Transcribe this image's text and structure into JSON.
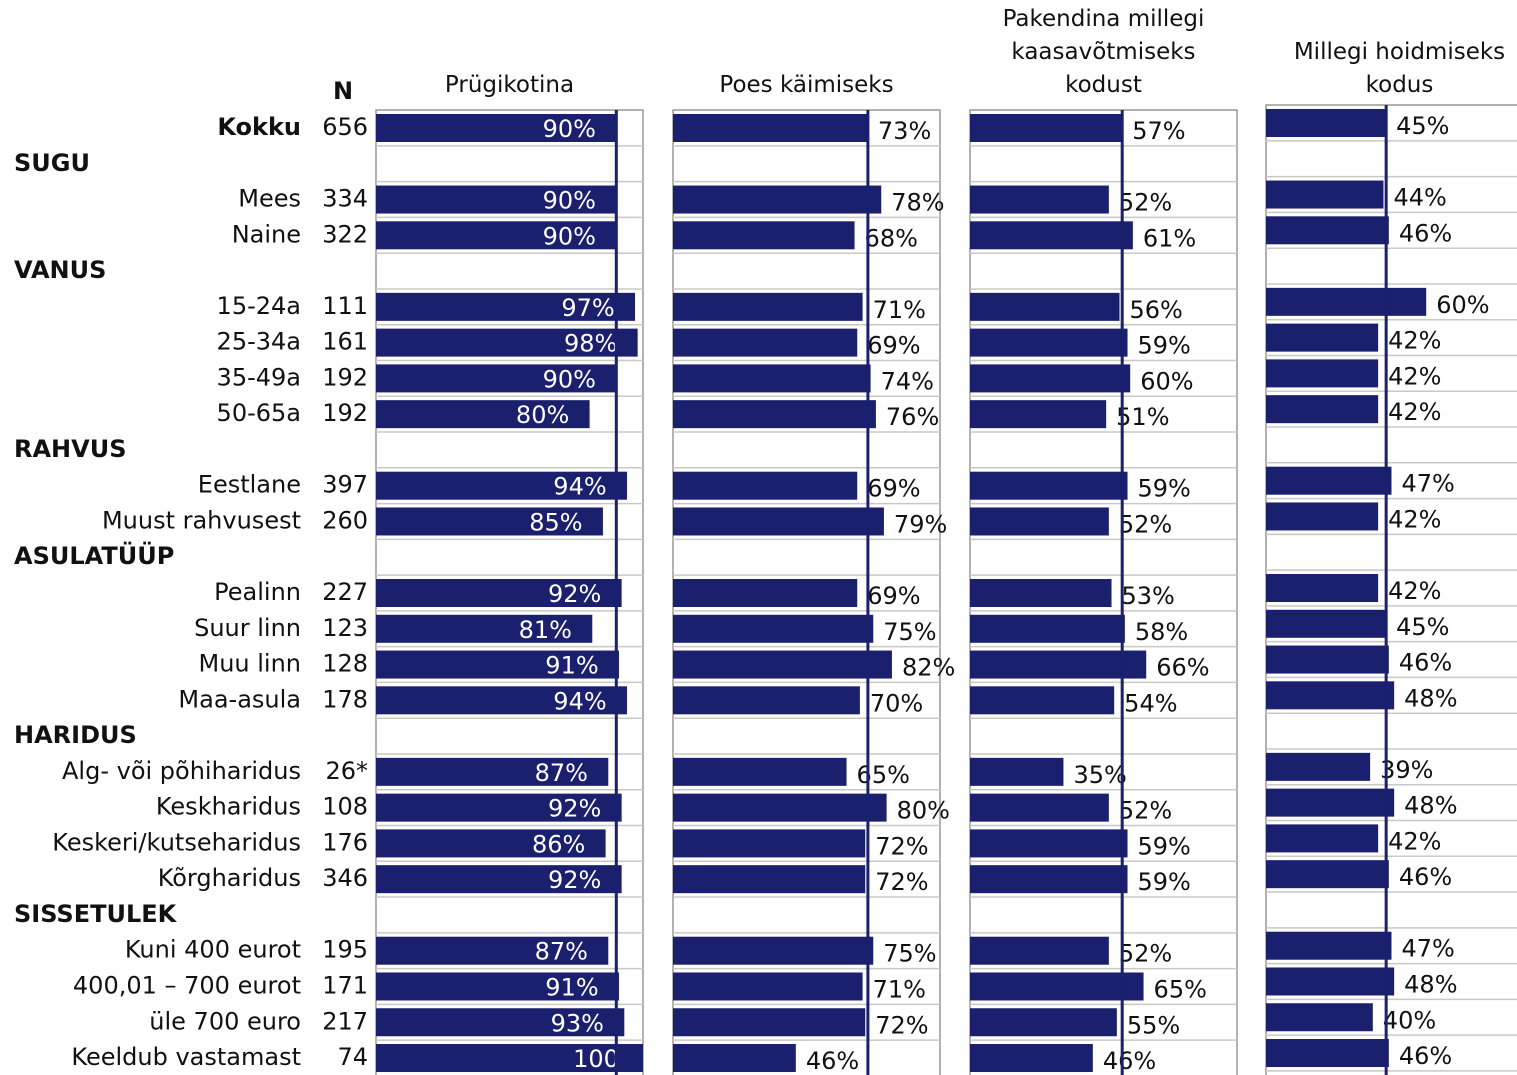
{
  "chart_data": {
    "type": "bar",
    "n_label": "N",
    "categories": [
      "Kokku",
      "SUGU",
      "Mees",
      "Naine",
      "VANUS",
      "15-24a",
      "25-34a",
      "35-49a",
      "50-65a",
      "RAHVUS",
      "Eestlane",
      "Muust rahvusest",
      "ASULATÜÜP",
      "Pealinn",
      "Suur linn",
      "Muu linn",
      "Maa-asula",
      "HARIDUS",
      "Alg- või põhiharidus",
      "Keskharidus",
      "Keskeri/kutseharidus",
      "Kõrgharidus",
      "SISSETULEK",
      "Kuni 400 eurot",
      "400,01 – 700 eurot",
      "üle 700 euro",
      "Keeldub vastamast"
    ],
    "n": [
      656,
      null,
      334,
      322,
      null,
      111,
      161,
      192,
      192,
      null,
      397,
      260,
      null,
      227,
      123,
      128,
      178,
      null,
      "26*",
      108,
      176,
      346,
      null,
      195,
      171,
      217,
      74
    ],
    "xlim": [
      0,
      100
    ],
    "series": [
      {
        "name": "Prügikotina",
        "color": "#1a1f6e",
        "values": [
          90,
          null,
          90,
          90,
          null,
          97,
          98,
          90,
          80,
          null,
          94,
          85,
          null,
          92,
          81,
          91,
          94,
          null,
          87,
          92,
          86,
          92,
          null,
          87,
          91,
          93,
          100
        ],
        "value_labels": [
          "90%",
          null,
          "90%",
          "90%",
          null,
          "97%",
          "98%",
          "90%",
          "80%",
          null,
          "94%",
          "85%",
          null,
          "92%",
          "81%",
          "91%",
          "94%",
          null,
          "87%",
          "92%",
          "86%",
          "92%",
          null,
          "87%",
          "91%",
          "93%",
          "100"
        ]
      },
      {
        "name": "Poes käimiseks",
        "color": "#1a1f6e",
        "values": [
          73,
          null,
          78,
          68,
          null,
          71,
          69,
          74,
          76,
          null,
          69,
          79,
          null,
          69,
          75,
          82,
          70,
          null,
          65,
          80,
          72,
          72,
          null,
          75,
          71,
          72,
          46
        ],
        "value_labels": [
          "73%",
          null,
          "78%",
          "68%",
          null,
          "71%",
          "69%",
          "74%",
          "76%",
          null,
          "69%",
          "79%",
          null,
          "69%",
          "75%",
          "82%",
          "70%",
          null,
          "65%",
          "80%",
          "72%",
          "72%",
          null,
          "75%",
          "71%",
          "72%",
          "46%"
        ]
      },
      {
        "name": "Pakendina millegi\nkaasavõtmiseks\nkodust",
        "color": "#1a1f6e",
        "values": [
          57,
          null,
          52,
          61,
          null,
          56,
          59,
          60,
          51,
          null,
          59,
          52,
          null,
          53,
          58,
          66,
          54,
          null,
          35,
          52,
          59,
          59,
          null,
          52,
          65,
          55,
          46
        ],
        "value_labels": [
          "57%",
          null,
          "52%",
          "61%",
          null,
          "56%",
          "59%",
          "60%",
          "51%",
          null,
          "59%",
          "52%",
          null,
          "53%",
          "58%",
          "66%",
          "54%",
          null,
          "35%",
          "52%",
          "59%",
          "59%",
          null,
          "52%",
          "65%",
          "55%",
          "46%"
        ]
      },
      {
        "name": "Millegi hoidmiseks\nkodus",
        "color": "#1a1f6e",
        "values": [
          45,
          null,
          44,
          46,
          null,
          60,
          42,
          42,
          42,
          null,
          47,
          42,
          null,
          42,
          45,
          46,
          48,
          null,
          39,
          48,
          42,
          46,
          null,
          47,
          48,
          40,
          46
        ],
        "value_labels": [
          "45%",
          null,
          "44%",
          "46%",
          null,
          "60%",
          "42%",
          "42%",
          "42%",
          null,
          "47%",
          "42%",
          null,
          "42%",
          "45%",
          "46%",
          "48%",
          null,
          "39%",
          "48%",
          "42%",
          "46%",
          null,
          "47%",
          "48%",
          "40%",
          "46%"
        ]
      }
    ]
  }
}
